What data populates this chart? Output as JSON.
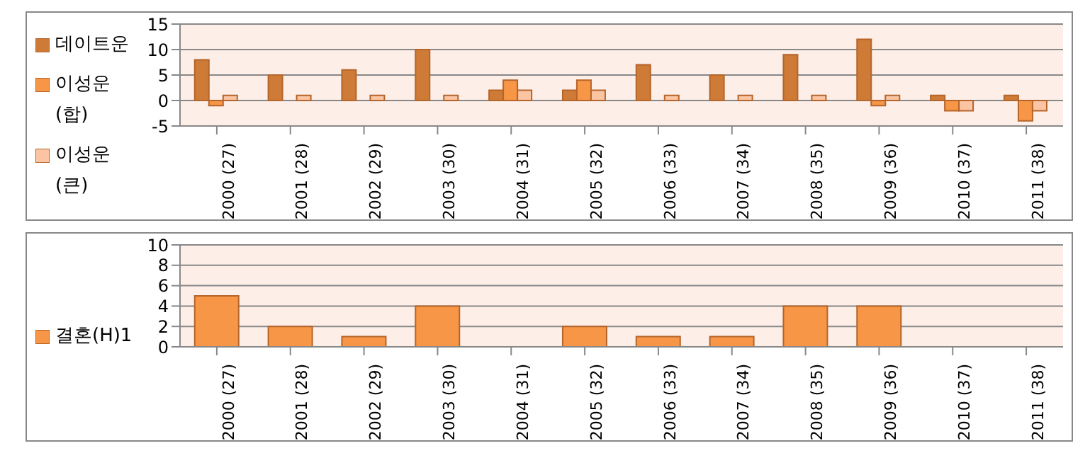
{
  "chart_data": [
    {
      "type": "bar",
      "categories": [
        "2000 (27)",
        "2001 (28)",
        "2002 (29)",
        "2003 (30)",
        "2004 (31)",
        "2005 (32)",
        "2006 (33)",
        "2007 (34)",
        "2008 (35)",
        "2009 (36)",
        "2010 (37)",
        "2011 (38)"
      ],
      "series": [
        {
          "name": "데이트운",
          "color": "#cd7b37",
          "values": [
            8,
            5,
            6,
            10,
            2,
            2,
            7,
            5,
            9,
            12,
            1,
            1
          ]
        },
        {
          "name": "이성운(합)",
          "color": "#f79646",
          "values": [
            -1,
            0,
            0,
            0,
            4,
            4,
            0,
            0,
            0,
            -1,
            -2,
            -4
          ]
        },
        {
          "name": "이성운(큰)",
          "color": "#fbc4a2",
          "values": [
            1,
            1,
            1,
            1,
            2,
            2,
            1,
            1,
            1,
            1,
            -2,
            -2
          ]
        }
      ],
      "ylim": [
        -5,
        15
      ],
      "yticks": [
        -5,
        0,
        5,
        10,
        15
      ],
      "grid": "y",
      "legend": "left"
    },
    {
      "type": "bar",
      "categories": [
        "2000 (27)",
        "2001 (28)",
        "2002 (29)",
        "2003 (30)",
        "2004 (31)",
        "2005 (32)",
        "2006 (33)",
        "2007 (34)",
        "2008 (35)",
        "2009 (36)",
        "2010 (37)",
        "2011 (38)"
      ],
      "series": [
        {
          "name": "결혼(H)1",
          "color": "#f79646",
          "values": [
            5,
            2,
            1,
            4,
            0,
            2,
            1,
            1,
            4,
            4,
            0,
            0
          ]
        }
      ],
      "ylim": [
        0,
        10
      ],
      "yticks": [
        0,
        2,
        4,
        6,
        8,
        10
      ],
      "grid": "y",
      "legend": "left"
    }
  ]
}
